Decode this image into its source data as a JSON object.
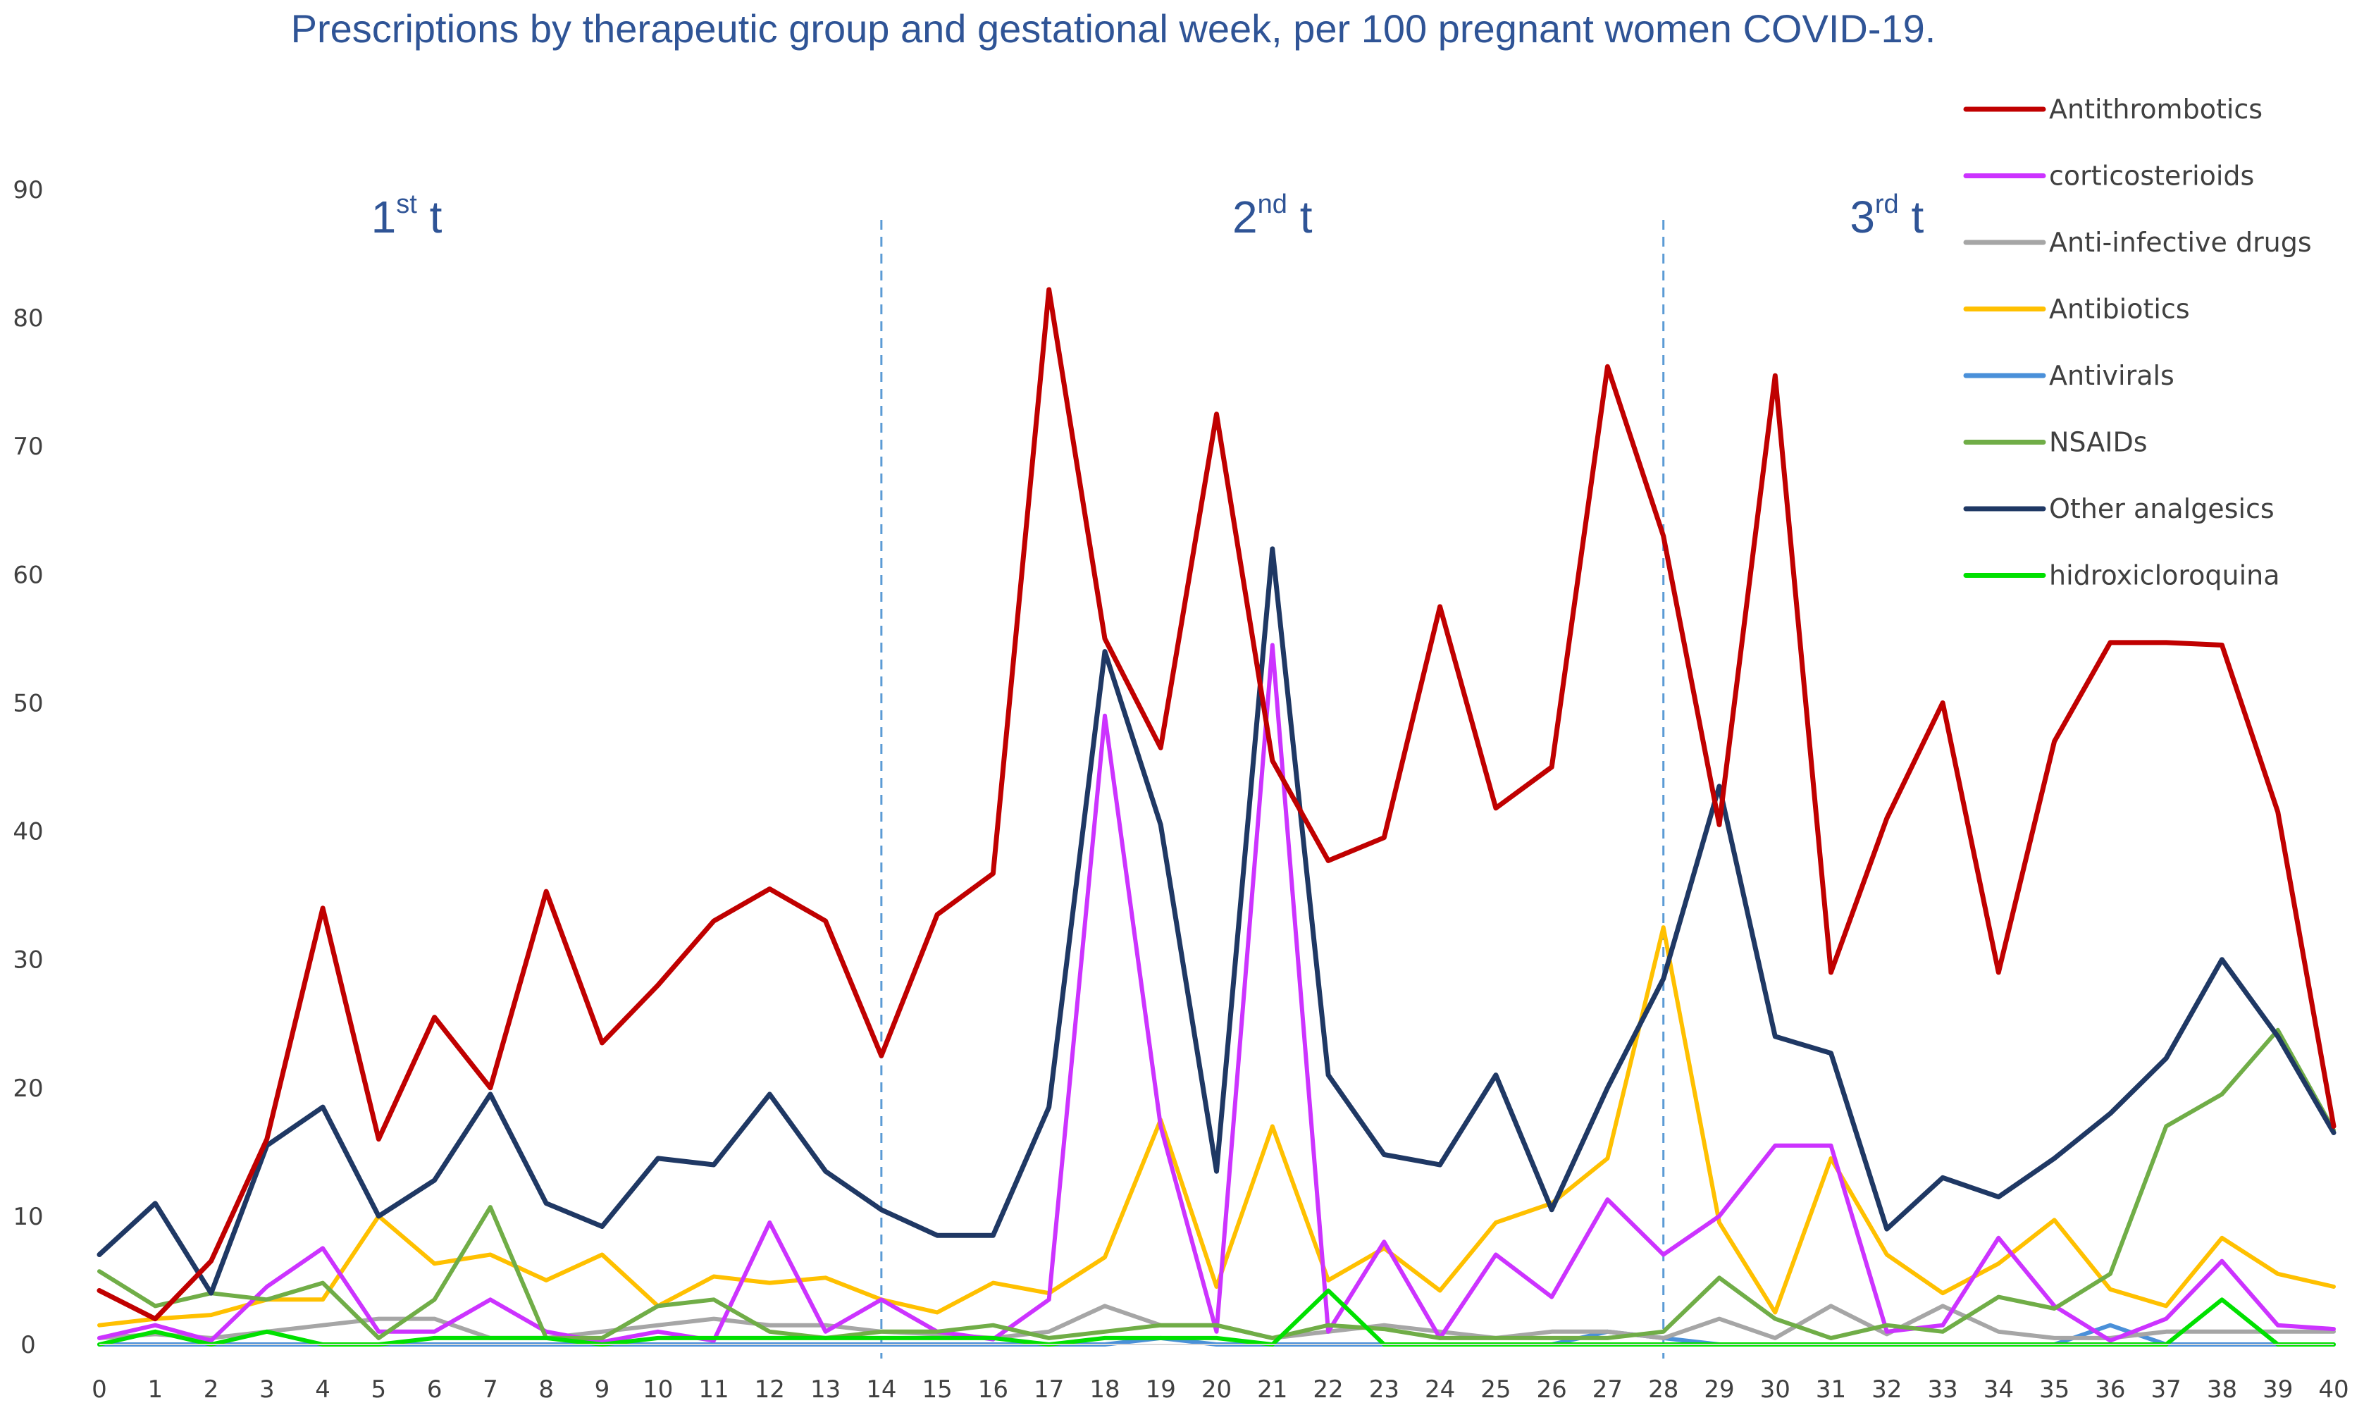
{
  "chart_data": {
    "type": "line",
    "title": "Prescriptions by therapeutic group and gestational week, per 100 pregnant women COVID-19.",
    "xlabel": "",
    "ylabel": "",
    "x": [
      0,
      1,
      2,
      3,
      4,
      5,
      6,
      7,
      8,
      9,
      10,
      11,
      12,
      13,
      14,
      15,
      16,
      17,
      18,
      19,
      20,
      21,
      22,
      23,
      24,
      25,
      26,
      27,
      28,
      29,
      30,
      31,
      32,
      33,
      34,
      35,
      36,
      37,
      38,
      39,
      40
    ],
    "ylim": [
      0,
      90
    ],
    "yticks": [
      "0",
      "10",
      "20",
      "30",
      "40",
      "50",
      "60",
      "70",
      "80",
      "90"
    ],
    "xticks": [
      "0",
      "1",
      "2",
      "3",
      "4",
      "5",
      "6",
      "7",
      "8",
      "9",
      "10",
      "11",
      "12",
      "13",
      "14",
      "15",
      "16",
      "17",
      "18",
      "19",
      "20",
      "21",
      "22",
      "23",
      "24",
      "25",
      "26",
      "27",
      "28",
      "29",
      "30",
      "31",
      "32",
      "33",
      "34",
      "35",
      "36",
      "37",
      "38",
      "39",
      "40"
    ],
    "trimester_markers": [
      {
        "week": 14
      },
      {
        "week": 28
      }
    ],
    "trimester_labels": [
      {
        "main": "1",
        "sup": "st",
        "tail": " t",
        "center_week": 5.5
      },
      {
        "main": "2",
        "sup": "nd",
        "tail": " t",
        "center_week": 21
      },
      {
        "main": "3",
        "sup": "rd",
        "tail": " t",
        "center_week": 32
      }
    ],
    "legend_position": "top-right",
    "series": [
      {
        "name": "Antithrombotics",
        "color": "#c00000",
        "values": [
          4.2,
          2,
          6.5,
          16,
          34,
          16,
          25.5,
          20,
          35.3,
          23.5,
          28,
          33,
          35.5,
          33,
          22.5,
          33.5,
          36.7,
          82.2,
          55,
          46.5,
          72.5,
          45.5,
          37.7,
          39.5,
          57.5,
          41.8,
          45,
          76.2,
          63,
          40.5,
          75.5,
          29,
          41,
          50,
          29,
          47,
          54.7,
          54.7,
          54.5,
          41.5,
          17
        ]
      },
      {
        "name": "corticosterioids",
        "color": "#cc33ff",
        "values": [
          0.5,
          1.5,
          0.3,
          4.5,
          7.5,
          1,
          1,
          3.5,
          1,
          0.2,
          1,
          0.3,
          9.5,
          1,
          3.5,
          1,
          0.4,
          3.5,
          49,
          17,
          1,
          54.5,
          1,
          8,
          0.5,
          7,
          3.7,
          11.3,
          7,
          10,
          15.5,
          15.5,
          1,
          1.5,
          8.3,
          3,
          0.3,
          2,
          6.5,
          1.5,
          1.2
        ]
      },
      {
        "name": "Anti-infective drugs",
        "color": "#a6a6a6",
        "values": [
          0.5,
          0.8,
          0.5,
          1,
          1.5,
          2,
          2,
          0.5,
          0.5,
          1,
          1.5,
          2,
          1.5,
          1.5,
          1,
          0.8,
          0.5,
          1,
          3,
          1.5,
          1.5,
          0.5,
          1,
          1.5,
          1,
          0.5,
          1,
          1,
          0.5,
          2,
          0.5,
          3,
          0.8,
          3,
          1,
          0.5,
          0.5,
          1,
          1,
          1,
          1
        ]
      },
      {
        "name": "Antibiotics",
        "color": "#ffc000",
        "values": [
          1.5,
          2,
          2.3,
          3.5,
          3.5,
          10,
          6.3,
          7,
          5,
          7,
          3,
          5.3,
          4.8,
          5.2,
          3.5,
          2.5,
          4.8,
          4,
          6.8,
          17.5,
          4.5,
          17,
          5,
          7.5,
          4.2,
          9.5,
          11,
          14.5,
          32.5,
          9.5,
          2.5,
          14.5,
          7,
          4,
          6.3,
          9.7,
          4.3,
          3,
          8.3,
          5.5,
          4.5
        ]
      },
      {
        "name": "Antivirals",
        "color": "#4a90d9",
        "values": [
          0,
          0,
          0,
          0,
          0,
          0,
          0,
          0,
          0,
          0,
          0,
          0,
          0,
          0,
          0,
          0,
          0,
          0,
          0,
          0.5,
          0,
          0,
          0,
          0,
          0,
          0,
          0,
          1,
          0.5,
          0,
          0,
          0,
          0,
          0,
          0,
          0,
          1.5,
          0,
          0,
          0,
          0
        ]
      },
      {
        "name": "NSAIDs",
        "color": "#70ad47",
        "values": [
          5.7,
          3,
          4,
          3.5,
          4.8,
          0.5,
          3.5,
          10.7,
          0.5,
          0.5,
          3,
          3.5,
          1,
          0.5,
          1,
          1,
          1.5,
          0.5,
          1,
          1.5,
          1.5,
          0.5,
          1.5,
          1.2,
          0.5,
          0.5,
          0.5,
          0.5,
          1,
          5.2,
          2,
          0.5,
          1.5,
          1,
          3.7,
          2.8,
          5.5,
          17,
          19.5,
          24.5,
          16.7
        ]
      },
      {
        "name": "Other analgesics",
        "color": "#1f3864",
        "values": [
          7,
          11,
          4,
          15.5,
          18.5,
          10,
          12.8,
          19.5,
          11,
          9.2,
          14.5,
          14,
          19.5,
          13.5,
          10.5,
          8.5,
          8.5,
          18.5,
          54,
          40.5,
          13.5,
          62,
          21,
          14.8,
          14,
          21,
          10.5,
          20,
          28.5,
          43.5,
          24,
          22.7,
          9,
          13,
          11.5,
          14.5,
          18,
          22.3,
          30,
          24,
          16.5
        ]
      },
      {
        "name": "hidroxicloroquina",
        "color": "#00e000",
        "values": [
          0,
          1,
          0,
          1,
          0,
          0,
          0.5,
          0.5,
          0.5,
          0,
          0.5,
          0.5,
          0.5,
          0.5,
          0.5,
          0.5,
          0.5,
          0,
          0.5,
          0.5,
          0.5,
          0,
          4.2,
          0,
          0,
          0,
          0,
          0,
          0,
          0,
          0,
          0,
          0,
          0,
          0,
          0,
          0,
          0,
          3.5,
          0,
          0
        ]
      }
    ]
  }
}
